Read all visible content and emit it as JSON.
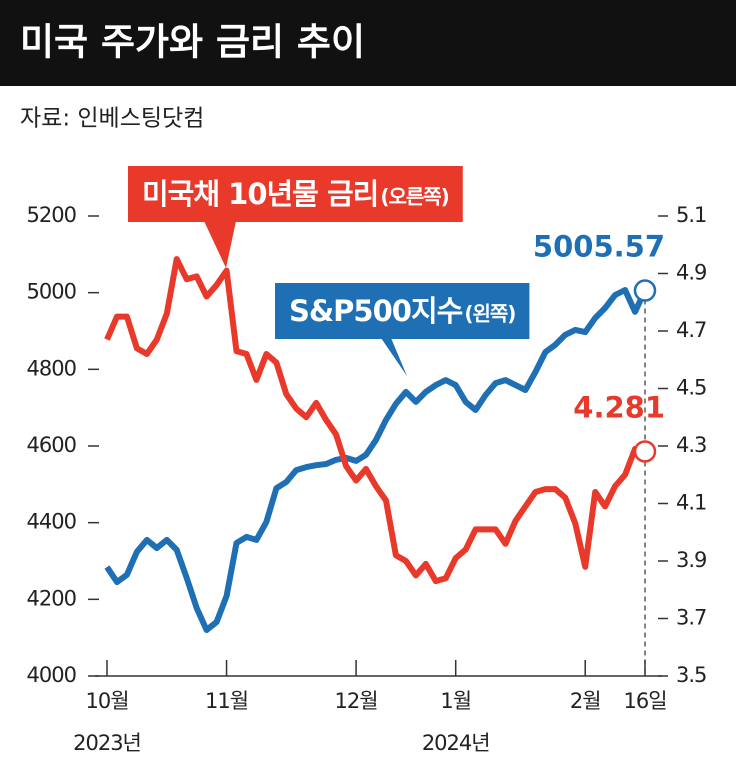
{
  "chart_data": {
    "type": "line",
    "title": "미국 주가와 금리 추이",
    "source": "자료: 인베스팅닷컴",
    "categories": [
      "10월",
      null,
      null,
      null,
      null,
      null,
      null,
      null,
      null,
      null,
      null,
      null,
      "11월",
      null,
      null,
      null,
      null,
      null,
      null,
      null,
      null,
      null,
      null,
      null,
      null,
      "12월",
      null,
      null,
      null,
      null,
      null,
      null,
      null,
      null,
      null,
      "1월",
      null,
      null,
      null,
      null,
      null,
      null,
      null,
      null,
      null,
      null,
      null,
      null,
      "2월",
      null,
      null,
      null,
      null,
      null,
      "16일"
    ],
    "category_years": [
      "2023년",
      null,
      null,
      null,
      null,
      null,
      null,
      null,
      null,
      null,
      null,
      null,
      null,
      null,
      null,
      null,
      null,
      null,
      null,
      null,
      null,
      null,
      null,
      null,
      null,
      null,
      null,
      null,
      null,
      null,
      null,
      null,
      null,
      null,
      null,
      "2024년",
      null,
      null,
      null,
      null,
      null,
      null,
      null,
      null,
      null,
      null,
      null,
      null,
      null,
      null,
      null,
      null,
      null,
      null,
      null
    ],
    "series": [
      {
        "name": "S&P500지수",
        "axis_note": "(왼쪽)",
        "color": "#1f6fb5",
        "axis": "y",
        "values": [
          4284,
          4245,
          4264,
          4324,
          4355,
          4334,
          4355,
          4329,
          4256,
          4177,
          4120,
          4141,
          4209,
          4347,
          4363,
          4355,
          4402,
          4490,
          4506,
          4537,
          4545,
          4550,
          4553,
          4564,
          4569,
          4561,
          4577,
          4616,
          4668,
          4710,
          4741,
          4715,
          4741,
          4759,
          4772,
          4759,
          4715,
          4694,
          4733,
          4764,
          4772,
          4759,
          4746,
          4793,
          4845,
          4864,
          4890,
          4903,
          4897,
          4934,
          4960,
          4994,
          5007,
          4950,
          5005.57
        ]
      },
      {
        "name": "미국채 10년물 금리",
        "axis_note": "(오른쪽)",
        "color": "#e8392a",
        "axis": "y2",
        "values": [
          4.67,
          4.75,
          4.75,
          4.64,
          4.62,
          4.67,
          4.76,
          4.95,
          4.88,
          4.89,
          4.82,
          4.86,
          4.91,
          4.63,
          4.62,
          4.53,
          4.62,
          4.59,
          4.48,
          4.43,
          4.4,
          4.45,
          4.39,
          4.34,
          4.23,
          4.18,
          4.22,
          4.16,
          4.11,
          3.92,
          3.9,
          3.85,
          3.89,
          3.83,
          3.84,
          3.91,
          3.94,
          4.01,
          4.01,
          4.01,
          3.96,
          4.04,
          4.09,
          4.14,
          4.15,
          4.15,
          4.12,
          4.03,
          3.88,
          4.14,
          4.09,
          4.16,
          4.2,
          4.29,
          4.281
        ]
      }
    ],
    "ylim": [
      4000,
      5200
    ],
    "yticks": [
      4000,
      4200,
      4400,
      4600,
      4800,
      5000,
      5200
    ],
    "y2lim": [
      3.5,
      5.1
    ],
    "y2ticks": [
      3.5,
      3.7,
      3.9,
      4.1,
      4.3,
      4.5,
      4.7,
      4.9,
      5.1
    ]
  }
}
